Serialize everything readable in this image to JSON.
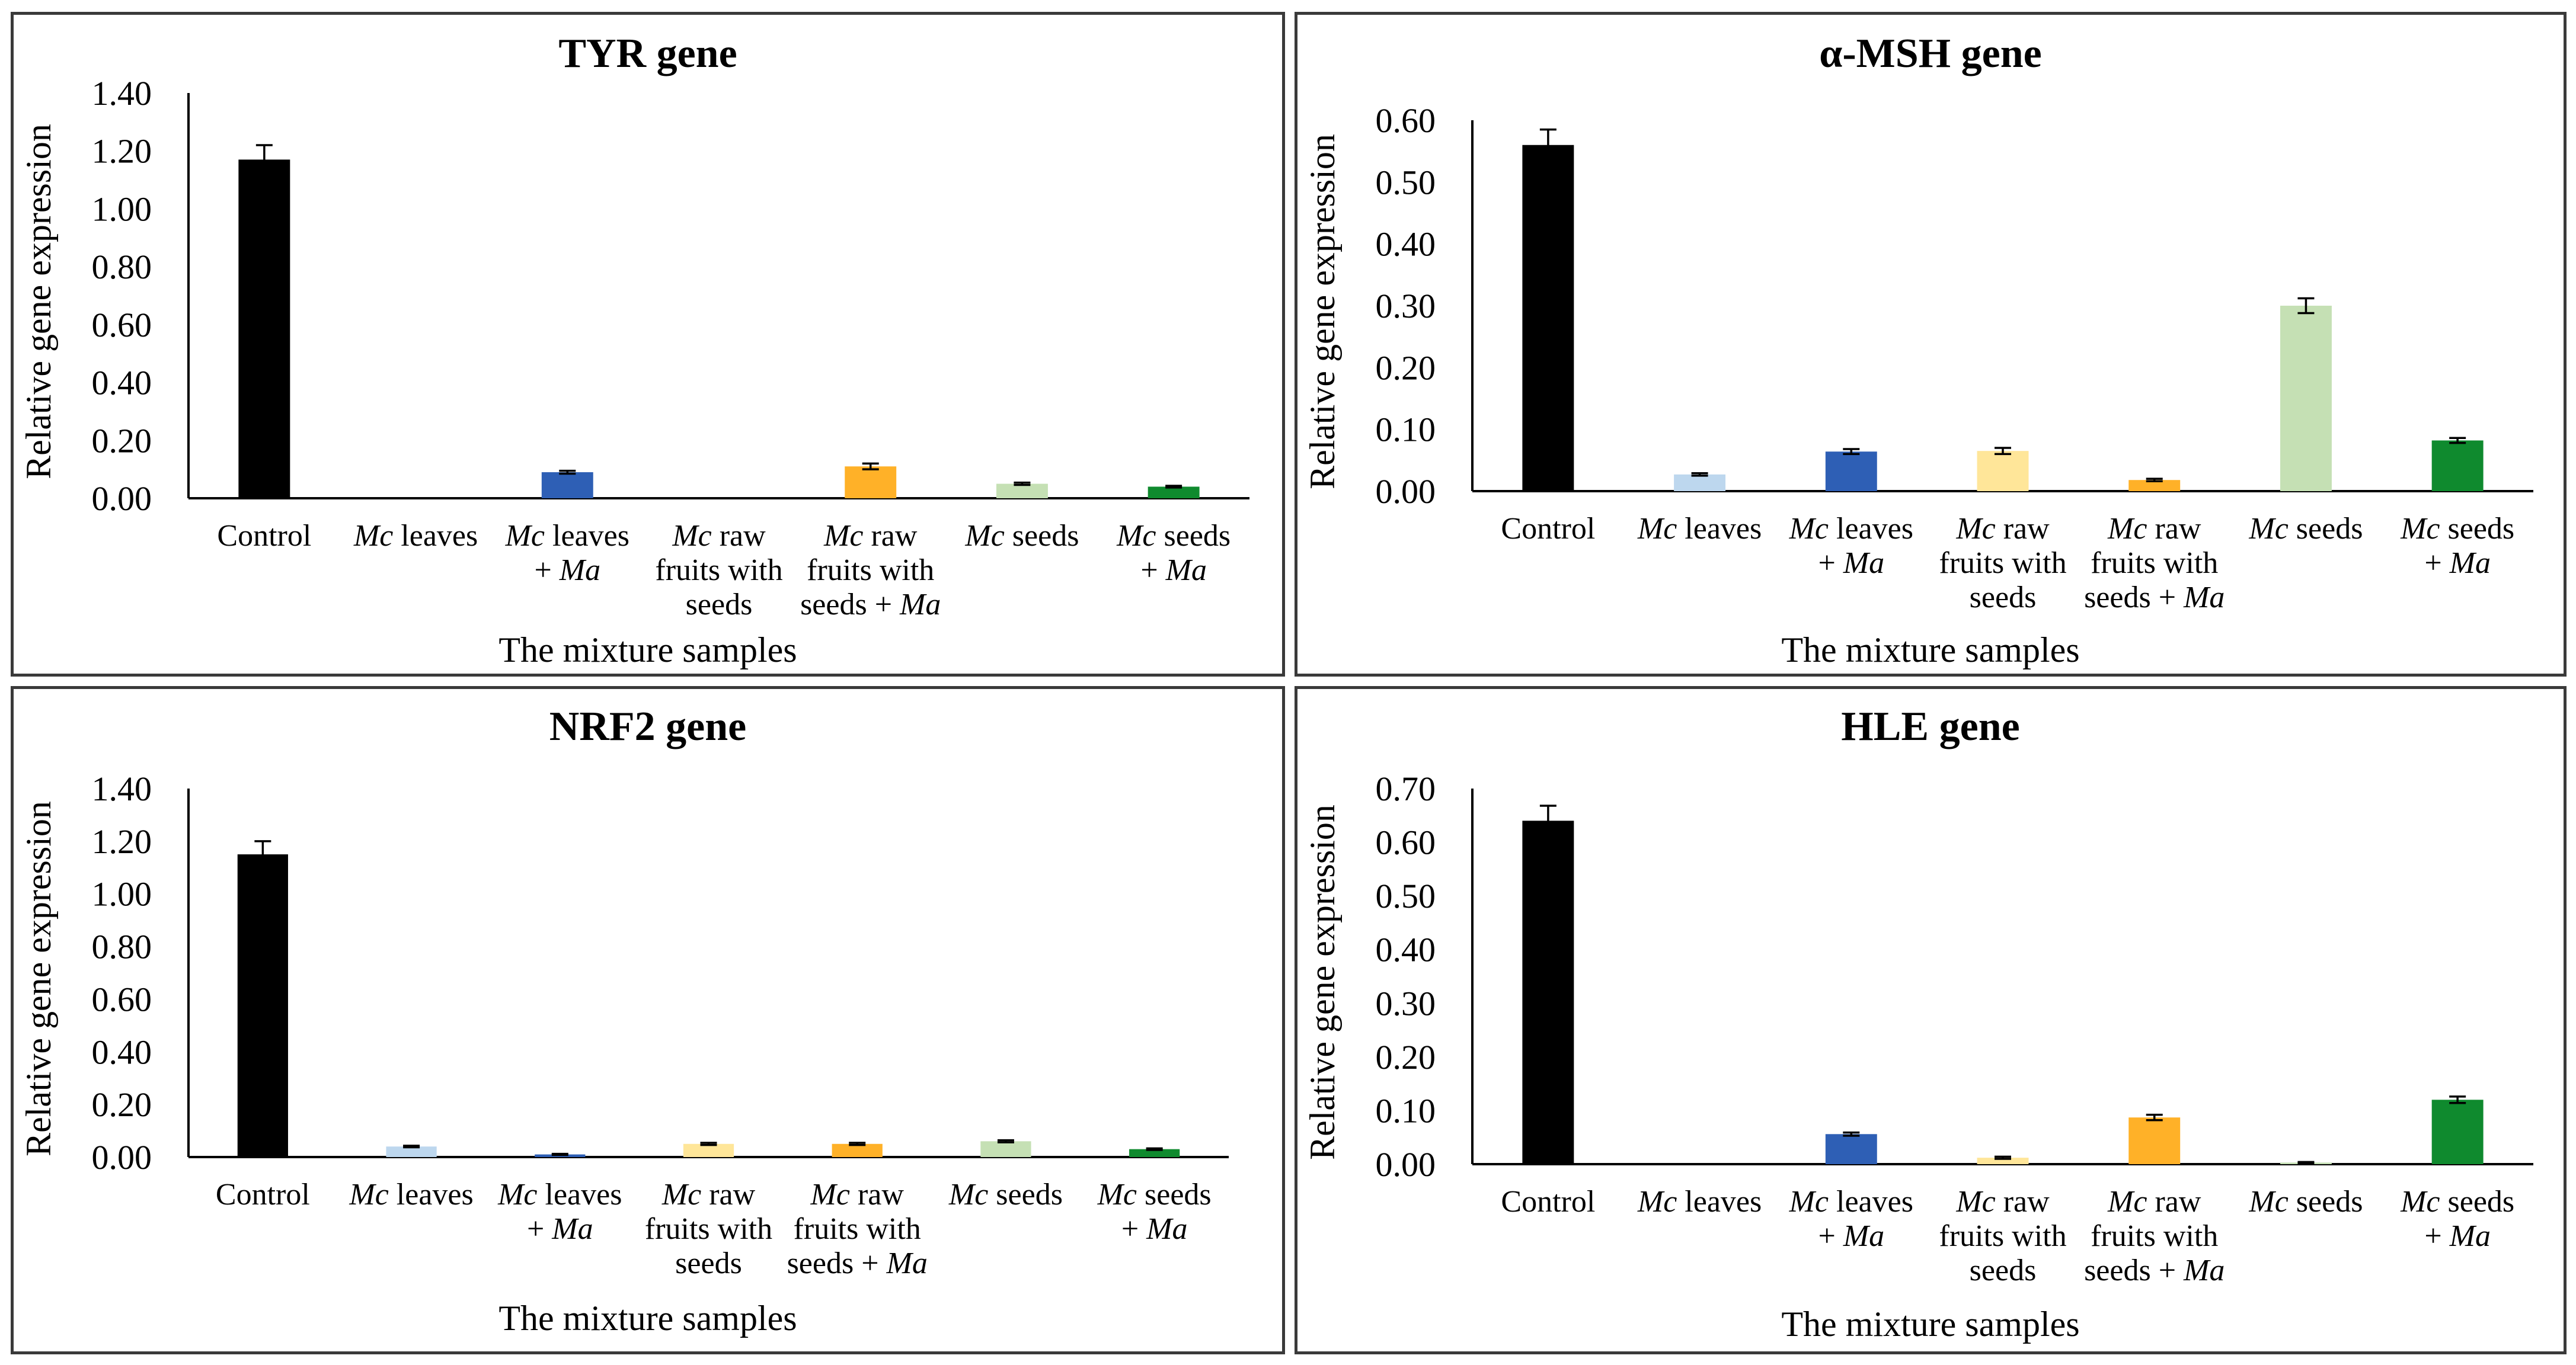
{
  "chart_data": [
    {
      "type": "bar",
      "title": "TYR gene",
      "xlabel": "The mixture samples",
      "ylabel": "Relative gene expression",
      "ylim": [
        0,
        1.4
      ],
      "yticks": [
        "0.00",
        "0.20",
        "0.40",
        "0.60",
        "0.80",
        "1.00",
        "1.20",
        "1.40"
      ],
      "categories": [
        "Control",
        "Mc leaves",
        "Mc leaves + Ma",
        "Mc raw fruits with seeds",
        "Mc raw fruits with seeds + Ma",
        "Mc seeds",
        "Mc seeds + Ma"
      ],
      "values": [
        1.17,
        0.0,
        0.09,
        0.0,
        0.11,
        0.05,
        0.04
      ],
      "errors": [
        0.05,
        0.0,
        0.005,
        0.0,
        0.01,
        0.004,
        0.003
      ],
      "grid": false,
      "legend": "none"
    },
    {
      "type": "bar",
      "title": "α-MSH gene",
      "xlabel": "The mixture samples",
      "ylabel": "Relative gene expression",
      "ylim": [
        0,
        0.6
      ],
      "yticks": [
        "0.00",
        "0.10",
        "0.20",
        "0.30",
        "0.40",
        "0.50",
        "0.60"
      ],
      "categories": [
        "Control",
        "Mc leaves",
        "Mc leaves + Ma",
        "Mc raw fruits with seeds",
        "Mc raw fruits with seeds + Ma",
        "Mc seeds",
        "Mc seeds + Ma"
      ],
      "values": [
        0.56,
        0.027,
        0.064,
        0.065,
        0.018,
        0.3,
        0.082
      ],
      "errors": [
        0.025,
        0.002,
        0.004,
        0.005,
        0.002,
        0.012,
        0.004
      ],
      "grid": false,
      "legend": "none"
    },
    {
      "type": "bar",
      "title": "NRF2 gene",
      "xlabel": "The mixture samples",
      "ylabel": "Relative gene expression",
      "ylim": [
        0,
        1.4
      ],
      "yticks": [
        "0.00",
        "0.20",
        "0.40",
        "0.60",
        "0.80",
        "1.00",
        "1.20",
        "1.40"
      ],
      "categories": [
        "Control",
        "Mc leaves",
        "Mc leaves + Ma",
        "Mc raw fruits with seeds",
        "Mc raw fruits with seeds + Ma",
        "Mc seeds",
        "Mc seeds + Ma"
      ],
      "values": [
        1.15,
        0.04,
        0.01,
        0.05,
        0.05,
        0.06,
        0.03
      ],
      "errors": [
        0.05,
        0.003,
        0.002,
        0.004,
        0.004,
        0.004,
        0.003
      ],
      "grid": false,
      "legend": "none"
    },
    {
      "type": "bar",
      "title": "HLE gene",
      "xlabel": "The mixture samples",
      "ylabel": "Relative gene expression",
      "ylim": [
        0,
        0.7
      ],
      "yticks": [
        "0.00",
        "0.10",
        "0.20",
        "0.30",
        "0.40",
        "0.50",
        "0.60",
        "0.70"
      ],
      "categories": [
        "Control",
        "Mc leaves",
        "Mc leaves + Ma",
        "Mc raw fruits with seeds",
        "Mc raw fruits with seeds + Ma",
        "Mc seeds",
        "Mc seeds + Ma"
      ],
      "values": [
        0.64,
        0.0,
        0.056,
        0.012,
        0.087,
        0.003,
        0.12
      ],
      "errors": [
        0.028,
        0.0,
        0.003,
        0.002,
        0.005,
        0.001,
        0.006
      ],
      "grid": false,
      "legend": "none"
    }
  ],
  "colors": [
    "#000000",
    "#bdd7ee",
    "#2e5fb5",
    "#ffe699",
    "#ffb128",
    "#c5e0b4",
    "#0f8a2e"
  ],
  "category_labels": [
    [
      {
        "t": "Control"
      }
    ],
    [
      {
        "i": "Mc",
        "t": " leaves"
      }
    ],
    [
      {
        "i": "Mc",
        "t": " leaves"
      },
      {
        "t": "+ ",
        "i2": "Ma"
      }
    ],
    [
      {
        "i": "Mc",
        "t": " raw"
      },
      {
        "t": "fruits with"
      },
      {
        "t": "seeds"
      }
    ],
    [
      {
        "i": "Mc",
        "t": " raw"
      },
      {
        "t": "fruits with"
      },
      {
        "t": "seeds + ",
        "i2": "Ma"
      }
    ],
    [
      {
        "i": "Mc",
        "t": " seeds"
      }
    ],
    [
      {
        "i": "Mc",
        "t": " seeds"
      },
      {
        "t": "+ ",
        "i2": "Ma"
      }
    ]
  ]
}
